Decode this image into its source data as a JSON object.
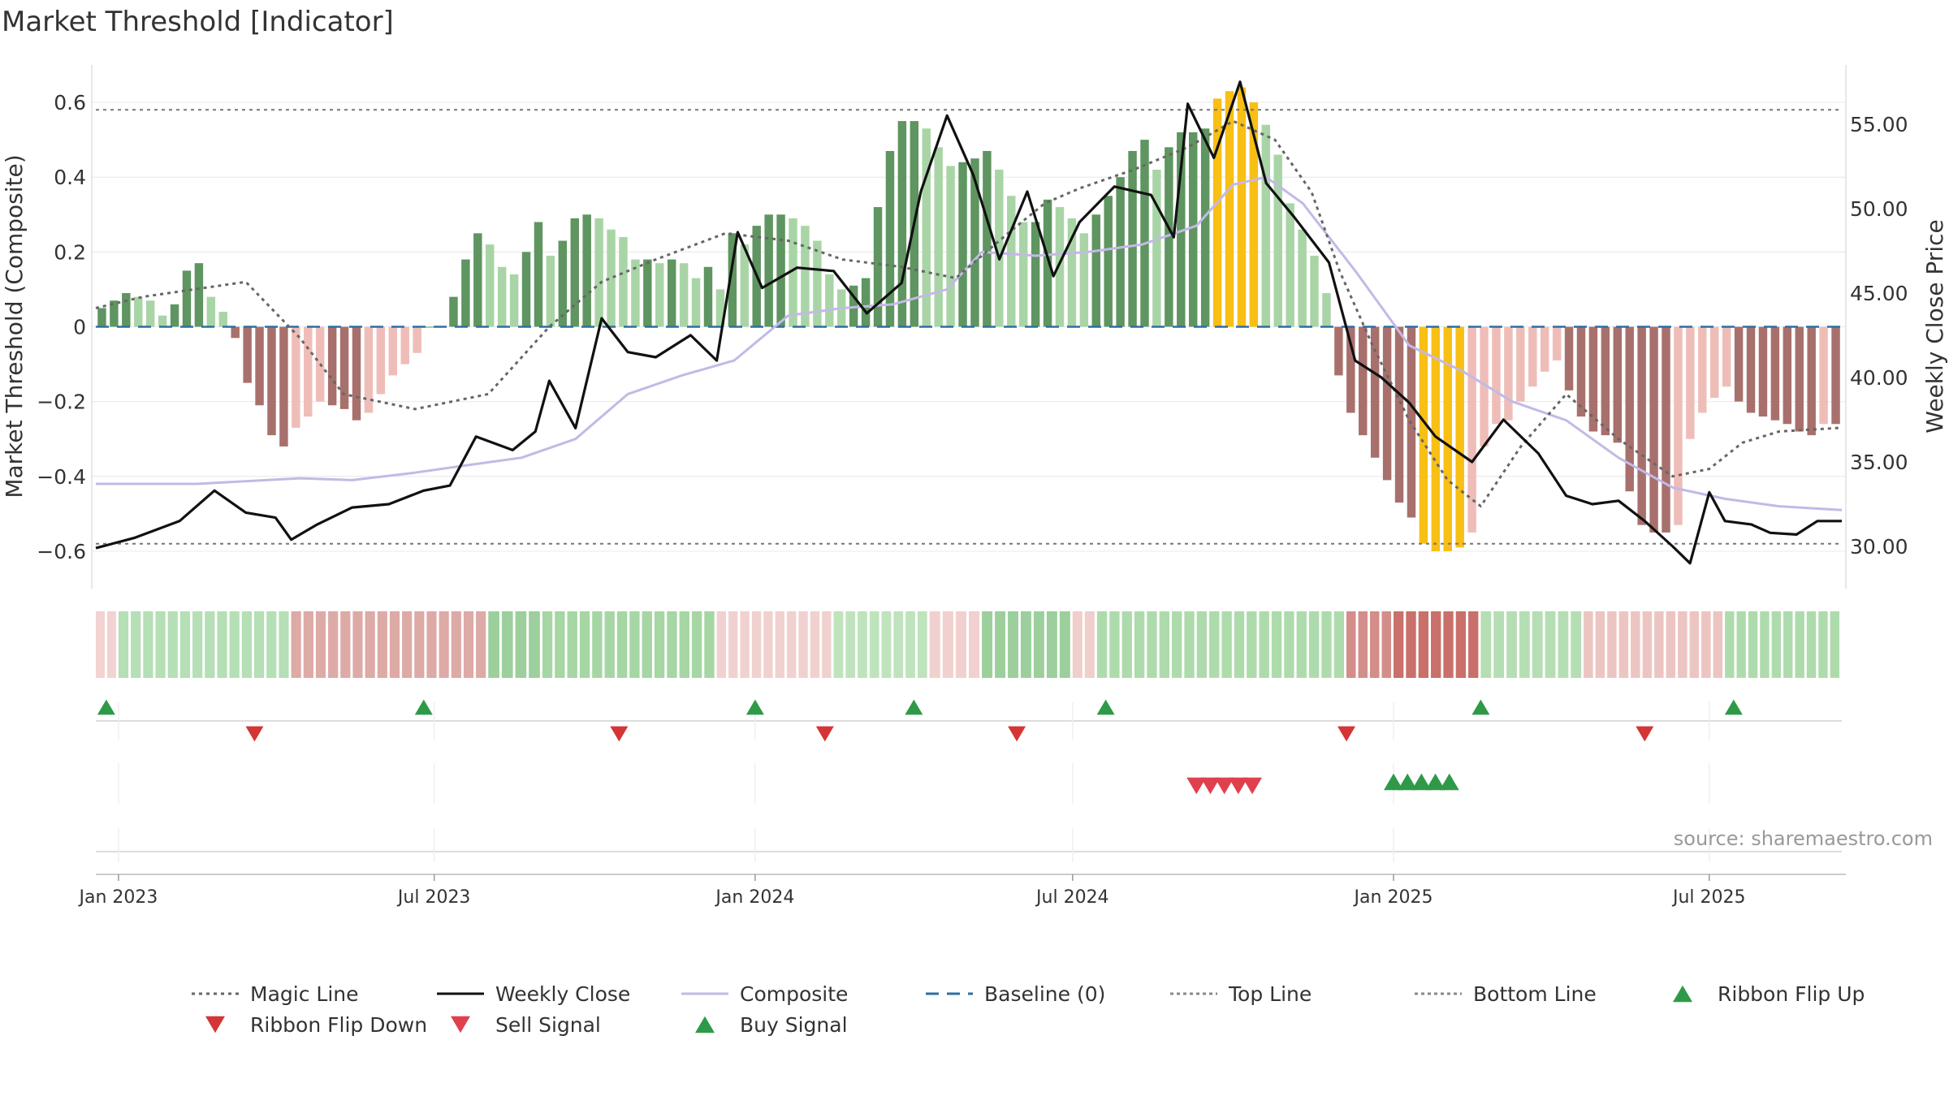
{
  "chart_data": {
    "type": "bar",
    "title": "Market Threshold [Indicator]",
    "ylabel": "Market Threshold (Composite)",
    "y2label": "Weekly Close Price",
    "source": "source: sharemaestro.com",
    "ylim": [
      -0.7,
      0.7
    ],
    "y2lim": [
      27.5,
      58.5
    ],
    "yticks": [
      0.6,
      0.4,
      0.2,
      0,
      -0.2,
      -0.4,
      -0.6
    ],
    "ytick_labels": [
      "0.6",
      "0.4",
      "0.2",
      "0",
      "−0.2",
      "−0.4",
      "−0.6"
    ],
    "y2ticks": [
      55,
      50,
      45,
      40,
      35,
      30
    ],
    "y2tick_labels": [
      "55.00",
      "50.00",
      "45.00",
      "40.00",
      "35.00",
      "30.00"
    ],
    "x_start": "2022-12-19",
    "x_end": "2025-09-15",
    "xticks": [
      "2023-01-01",
      "2023-07-01",
      "2024-01-01",
      "2024-07-01",
      "2025-01-01",
      "2025-07-01"
    ],
    "xtick_labels": [
      "Jan 2023",
      "Jul 2023",
      "Jan 2024",
      "Jul 2024",
      "Jan 2025",
      "Jul 2025"
    ],
    "top_line": 0.58,
    "bottom_line": -0.58,
    "grid": true,
    "legend_position": "bottom",
    "colors": {
      "pos_dark": "#5f9560",
      "pos_light": "#a9d5a6",
      "neg_dark": "#a8706c",
      "neg_light": "#efbdb8",
      "extreme": "#f8bf14",
      "magic": "#666666",
      "close": "#111111",
      "composite": "#c3b9e6",
      "baseline": "#2d6fa4",
      "buy": "#2e9a48",
      "sell": "#e0404e",
      "flip_up": "#2e9a48",
      "flip_down": "#d43535"
    },
    "bars": {
      "values": [
        0.05,
        0.07,
        0.09,
        0.08,
        0.07,
        0.03,
        0.06,
        0.15,
        0.17,
        0.08,
        0.04,
        -0.03,
        -0.15,
        -0.21,
        -0.29,
        -0.32,
        -0.27,
        -0.24,
        -0.2,
        -0.21,
        -0.22,
        -0.25,
        -0.23,
        -0.18,
        -0.13,
        -0.1,
        -0.07,
        0.0,
        0.0,
        0.08,
        0.18,
        0.25,
        0.22,
        0.16,
        0.14,
        0.2,
        0.28,
        0.19,
        0.23,
        0.29,
        0.3,
        0.29,
        0.26,
        0.24,
        0.18,
        0.18,
        0.17,
        0.18,
        0.17,
        0.13,
        0.16,
        0.1,
        0.25,
        0.22,
        0.27,
        0.3,
        0.3,
        0.29,
        0.27,
        0.23,
        0.14,
        0.1,
        0.11,
        0.13,
        0.32,
        0.47,
        0.55,
        0.55,
        0.53,
        0.48,
        0.43,
        0.44,
        0.45,
        0.47,
        0.42,
        0.35,
        0.28,
        0.28,
        0.34,
        0.32,
        0.29,
        0.25,
        0.3,
        0.35,
        0.4,
        0.47,
        0.5,
        0.42,
        0.48,
        0.52,
        0.52,
        0.53,
        0.61,
        0.63,
        0.64,
        0.6,
        0.54,
        0.46,
        0.33,
        0.26,
        0.19,
        0.09,
        -0.13,
        -0.23,
        -0.29,
        -0.35,
        -0.41,
        -0.47,
        -0.51,
        -0.58,
        -0.6,
        -0.6,
        -0.59,
        -0.55,
        -0.32,
        -0.26,
        -0.25,
        -0.2,
        -0.16,
        -0.12,
        -0.09,
        -0.17,
        -0.24,
        -0.28,
        -0.29,
        -0.31,
        -0.44,
        -0.53,
        -0.55,
        -0.55,
        -0.53,
        -0.3,
        -0.23,
        -0.19,
        -0.16,
        -0.2,
        -0.23,
        -0.24,
        -0.25,
        -0.26,
        -0.28,
        -0.29,
        -0.26,
        -0.26
      ],
      "shade": "dark = positive and rising / negative and falling; light = momentum fading; extreme = beyond top/bottom line"
    },
    "series": [
      {
        "name": "Magic Line",
        "axis": "left",
        "style": "dotted",
        "points": [
          [
            "2022-12-19",
            0.05
          ],
          [
            "2023-01-15",
            0.08
          ],
          [
            "2023-03-15",
            0.12
          ],
          [
            "2023-04-15",
            -0.03
          ],
          [
            "2023-05-10",
            -0.18
          ],
          [
            "2023-06-20",
            -0.22
          ],
          [
            "2023-08-01",
            -0.18
          ],
          [
            "2023-09-05",
            0.0
          ],
          [
            "2023-10-05",
            0.12
          ],
          [
            "2023-11-05",
            0.18
          ],
          [
            "2023-12-15",
            0.25
          ],
          [
            "2024-01-20",
            0.23
          ],
          [
            "2024-02-20",
            0.18
          ],
          [
            "2024-03-25",
            0.16
          ],
          [
            "2024-04-25",
            0.13
          ],
          [
            "2024-05-25",
            0.25
          ],
          [
            "2024-06-15",
            0.33
          ],
          [
            "2024-07-05",
            0.37
          ],
          [
            "2024-08-05",
            0.42
          ],
          [
            "2024-09-05",
            0.48
          ],
          [
            "2024-10-01",
            0.55
          ],
          [
            "2024-10-25",
            0.5
          ],
          [
            "2024-11-15",
            0.36
          ],
          [
            "2024-12-01",
            0.15
          ],
          [
            "2024-12-20",
            -0.05
          ],
          [
            "2025-01-10",
            -0.25
          ],
          [
            "2025-02-01",
            -0.41
          ],
          [
            "2025-02-20",
            -0.48
          ],
          [
            "2025-03-15",
            -0.32
          ],
          [
            "2025-04-10",
            -0.18
          ],
          [
            "2025-05-10",
            -0.3
          ],
          [
            "2025-06-10",
            -0.4
          ],
          [
            "2025-07-01",
            -0.38
          ],
          [
            "2025-07-20",
            -0.31
          ],
          [
            "2025-08-10",
            -0.28
          ],
          [
            "2025-09-15",
            -0.27
          ]
        ]
      },
      {
        "name": "Weekly Close",
        "axis": "right",
        "style": "solid",
        "points": [
          [
            "2022-12-19",
            29.9
          ],
          [
            "2023-01-10",
            30.5
          ],
          [
            "2023-02-05",
            31.5
          ],
          [
            "2023-02-25",
            33.3
          ],
          [
            "2023-03-15",
            32.0
          ],
          [
            "2023-04-01",
            31.7
          ],
          [
            "2023-04-10",
            30.4
          ],
          [
            "2023-04-25",
            31.3
          ],
          [
            "2023-05-15",
            32.3
          ],
          [
            "2023-06-05",
            32.5
          ],
          [
            "2023-06-25",
            33.3
          ],
          [
            "2023-07-10",
            33.6
          ],
          [
            "2023-07-25",
            36.5
          ],
          [
            "2023-08-15",
            35.7
          ],
          [
            "2023-08-28",
            36.8
          ],
          [
            "2023-09-05",
            39.8
          ],
          [
            "2023-09-20",
            37.0
          ],
          [
            "2023-10-05",
            43.5
          ],
          [
            "2023-10-20",
            41.5
          ],
          [
            "2023-11-05",
            41.2
          ],
          [
            "2023-11-25",
            42.5
          ],
          [
            "2023-12-10",
            41.0
          ],
          [
            "2023-12-22",
            48.6
          ],
          [
            "2024-01-05",
            45.3
          ],
          [
            "2024-01-25",
            46.5
          ],
          [
            "2024-02-15",
            46.3
          ],
          [
            "2024-03-05",
            43.8
          ],
          [
            "2024-03-25",
            45.6
          ],
          [
            "2024-04-05",
            51.0
          ],
          [
            "2024-04-20",
            55.5
          ],
          [
            "2024-05-05",
            52.0
          ],
          [
            "2024-05-20",
            47.0
          ],
          [
            "2024-06-05",
            51.0
          ],
          [
            "2024-06-20",
            46.0
          ],
          [
            "2024-07-05",
            49.2
          ],
          [
            "2024-07-25",
            51.3
          ],
          [
            "2024-08-15",
            50.8
          ],
          [
            "2024-08-28",
            48.3
          ],
          [
            "2024-09-05",
            56.2
          ],
          [
            "2024-09-20",
            53.0
          ],
          [
            "2024-10-05",
            57.5
          ],
          [
            "2024-10-20",
            51.5
          ],
          [
            "2024-11-05",
            49.5
          ],
          [
            "2024-11-25",
            46.8
          ],
          [
            "2024-12-10",
            41.0
          ],
          [
            "2024-12-25",
            40.0
          ],
          [
            "2025-01-10",
            38.5
          ],
          [
            "2025-01-25",
            36.5
          ],
          [
            "2025-02-15",
            35.0
          ],
          [
            "2025-03-05",
            37.5
          ],
          [
            "2025-03-25",
            35.5
          ],
          [
            "2025-04-10",
            33.0
          ],
          [
            "2025-04-25",
            32.5
          ],
          [
            "2025-05-10",
            32.7
          ],
          [
            "2025-05-25",
            31.5
          ],
          [
            "2025-06-10",
            30.0
          ],
          [
            "2025-06-20",
            29.0
          ],
          [
            "2025-07-01",
            33.2
          ],
          [
            "2025-07-10",
            31.5
          ],
          [
            "2025-07-25",
            31.3
          ],
          [
            "2025-08-05",
            30.8
          ],
          [
            "2025-08-20",
            30.7
          ],
          [
            "2025-09-01",
            31.5
          ],
          [
            "2025-09-15",
            31.5
          ]
        ]
      },
      {
        "name": "Composite",
        "axis": "left",
        "style": "solid",
        "points": [
          [
            "2022-12-19",
            -0.42
          ],
          [
            "2023-02-15",
            -0.42
          ],
          [
            "2023-04-15",
            -0.405
          ],
          [
            "2023-05-15",
            -0.41
          ],
          [
            "2023-06-20",
            -0.39
          ],
          [
            "2023-07-20",
            -0.37
          ],
          [
            "2023-08-20",
            -0.35
          ],
          [
            "2023-09-20",
            -0.3
          ],
          [
            "2023-10-20",
            -0.18
          ],
          [
            "2023-11-20",
            -0.13
          ],
          [
            "2023-12-20",
            -0.09
          ],
          [
            "2024-01-20",
            0.03
          ],
          [
            "2024-02-20",
            0.05
          ],
          [
            "2024-03-20",
            0.06
          ],
          [
            "2024-04-20",
            0.1
          ],
          [
            "2024-05-10",
            0.2
          ],
          [
            "2024-06-10",
            0.19
          ],
          [
            "2024-07-10",
            0.2
          ],
          [
            "2024-08-10",
            0.22
          ],
          [
            "2024-09-10",
            0.27
          ],
          [
            "2024-10-01",
            0.38
          ],
          [
            "2024-10-20",
            0.4
          ],
          [
            "2024-11-10",
            0.33
          ],
          [
            "2024-12-10",
            0.15
          ],
          [
            "2025-01-10",
            -0.05
          ],
          [
            "2025-02-10",
            -0.12
          ],
          [
            "2025-03-10",
            -0.2
          ],
          [
            "2025-04-10",
            -0.25
          ],
          [
            "2025-05-10",
            -0.35
          ],
          [
            "2025-06-10",
            -0.43
          ],
          [
            "2025-07-10",
            -0.46
          ],
          [
            "2025-08-10",
            -0.48
          ],
          [
            "2025-09-15",
            -0.49
          ]
        ]
      },
      {
        "name": "Baseline (0)",
        "axis": "left",
        "style": "dashed",
        "value": 0
      },
      {
        "name": "Top Line",
        "axis": "left",
        "style": "dotted",
        "value": 0.58
      },
      {
        "name": "Bottom Line",
        "axis": "left",
        "style": "dotted",
        "value": -0.58
      },
      {
        "name": "Ribbon Flip Up",
        "marker": "triangle-up",
        "dates": [
          "2022-12-25",
          "2023-06-25",
          "2024-01-01",
          "2024-04-01",
          "2024-07-20",
          "2025-02-20",
          "2025-07-15"
        ]
      },
      {
        "name": "Ribbon Flip Down",
        "marker": "triangle-down",
        "dates": [
          "2023-03-20",
          "2023-10-15",
          "2024-02-10",
          "2024-05-30",
          "2024-12-05",
          "2025-05-25"
        ]
      },
      {
        "name": "Sell Signal",
        "marker": "triangle-down",
        "dates": [
          "2024-09-10",
          "2024-09-18",
          "2024-09-26",
          "2024-10-04",
          "2024-10-12"
        ]
      },
      {
        "name": "Buy Signal",
        "marker": "triangle-up",
        "dates": [
          "2025-01-01",
          "2025-01-09",
          "2025-01-17",
          "2025-01-25",
          "2025-02-02"
        ]
      }
    ],
    "ribbon": {
      "bands": [
        [
          "2022-12-19",
          "2023-01-01",
          "#f2d3d1"
        ],
        [
          "2023-01-01",
          "2023-04-10",
          "#b5dfb5"
        ],
        [
          "2023-04-10",
          "2023-08-01",
          "#ddaaa6"
        ],
        [
          "2023-08-01",
          "2023-09-01",
          "#9ccf9c"
        ],
        [
          "2023-09-01",
          "2023-12-10",
          "#a5d6a3"
        ],
        [
          "2023-12-10",
          "2024-02-15",
          "#f1d1cf"
        ],
        [
          "2024-02-15",
          "2024-04-10",
          "#bfe3bd"
        ],
        [
          "2024-04-10",
          "2024-05-10",
          "#f1d1cf"
        ],
        [
          "2024-05-10",
          "2024-07-01",
          "#9ccf9c"
        ],
        [
          "2024-07-01",
          "2024-07-15",
          "#f0cecb"
        ],
        [
          "2024-07-15",
          "2024-12-05",
          "#aedbab"
        ],
        [
          "2024-12-05",
          "2025-01-01",
          "#d38e89"
        ],
        [
          "2025-01-01",
          "2025-02-20",
          "#c9706a"
        ],
        [
          "2025-02-20",
          "2025-04-20",
          "#b6deb4"
        ],
        [
          "2025-04-20",
          "2025-07-10",
          "#ecc5c2"
        ],
        [
          "2025-07-10",
          "2025-09-15",
          "#aedbab"
        ]
      ]
    }
  }
}
